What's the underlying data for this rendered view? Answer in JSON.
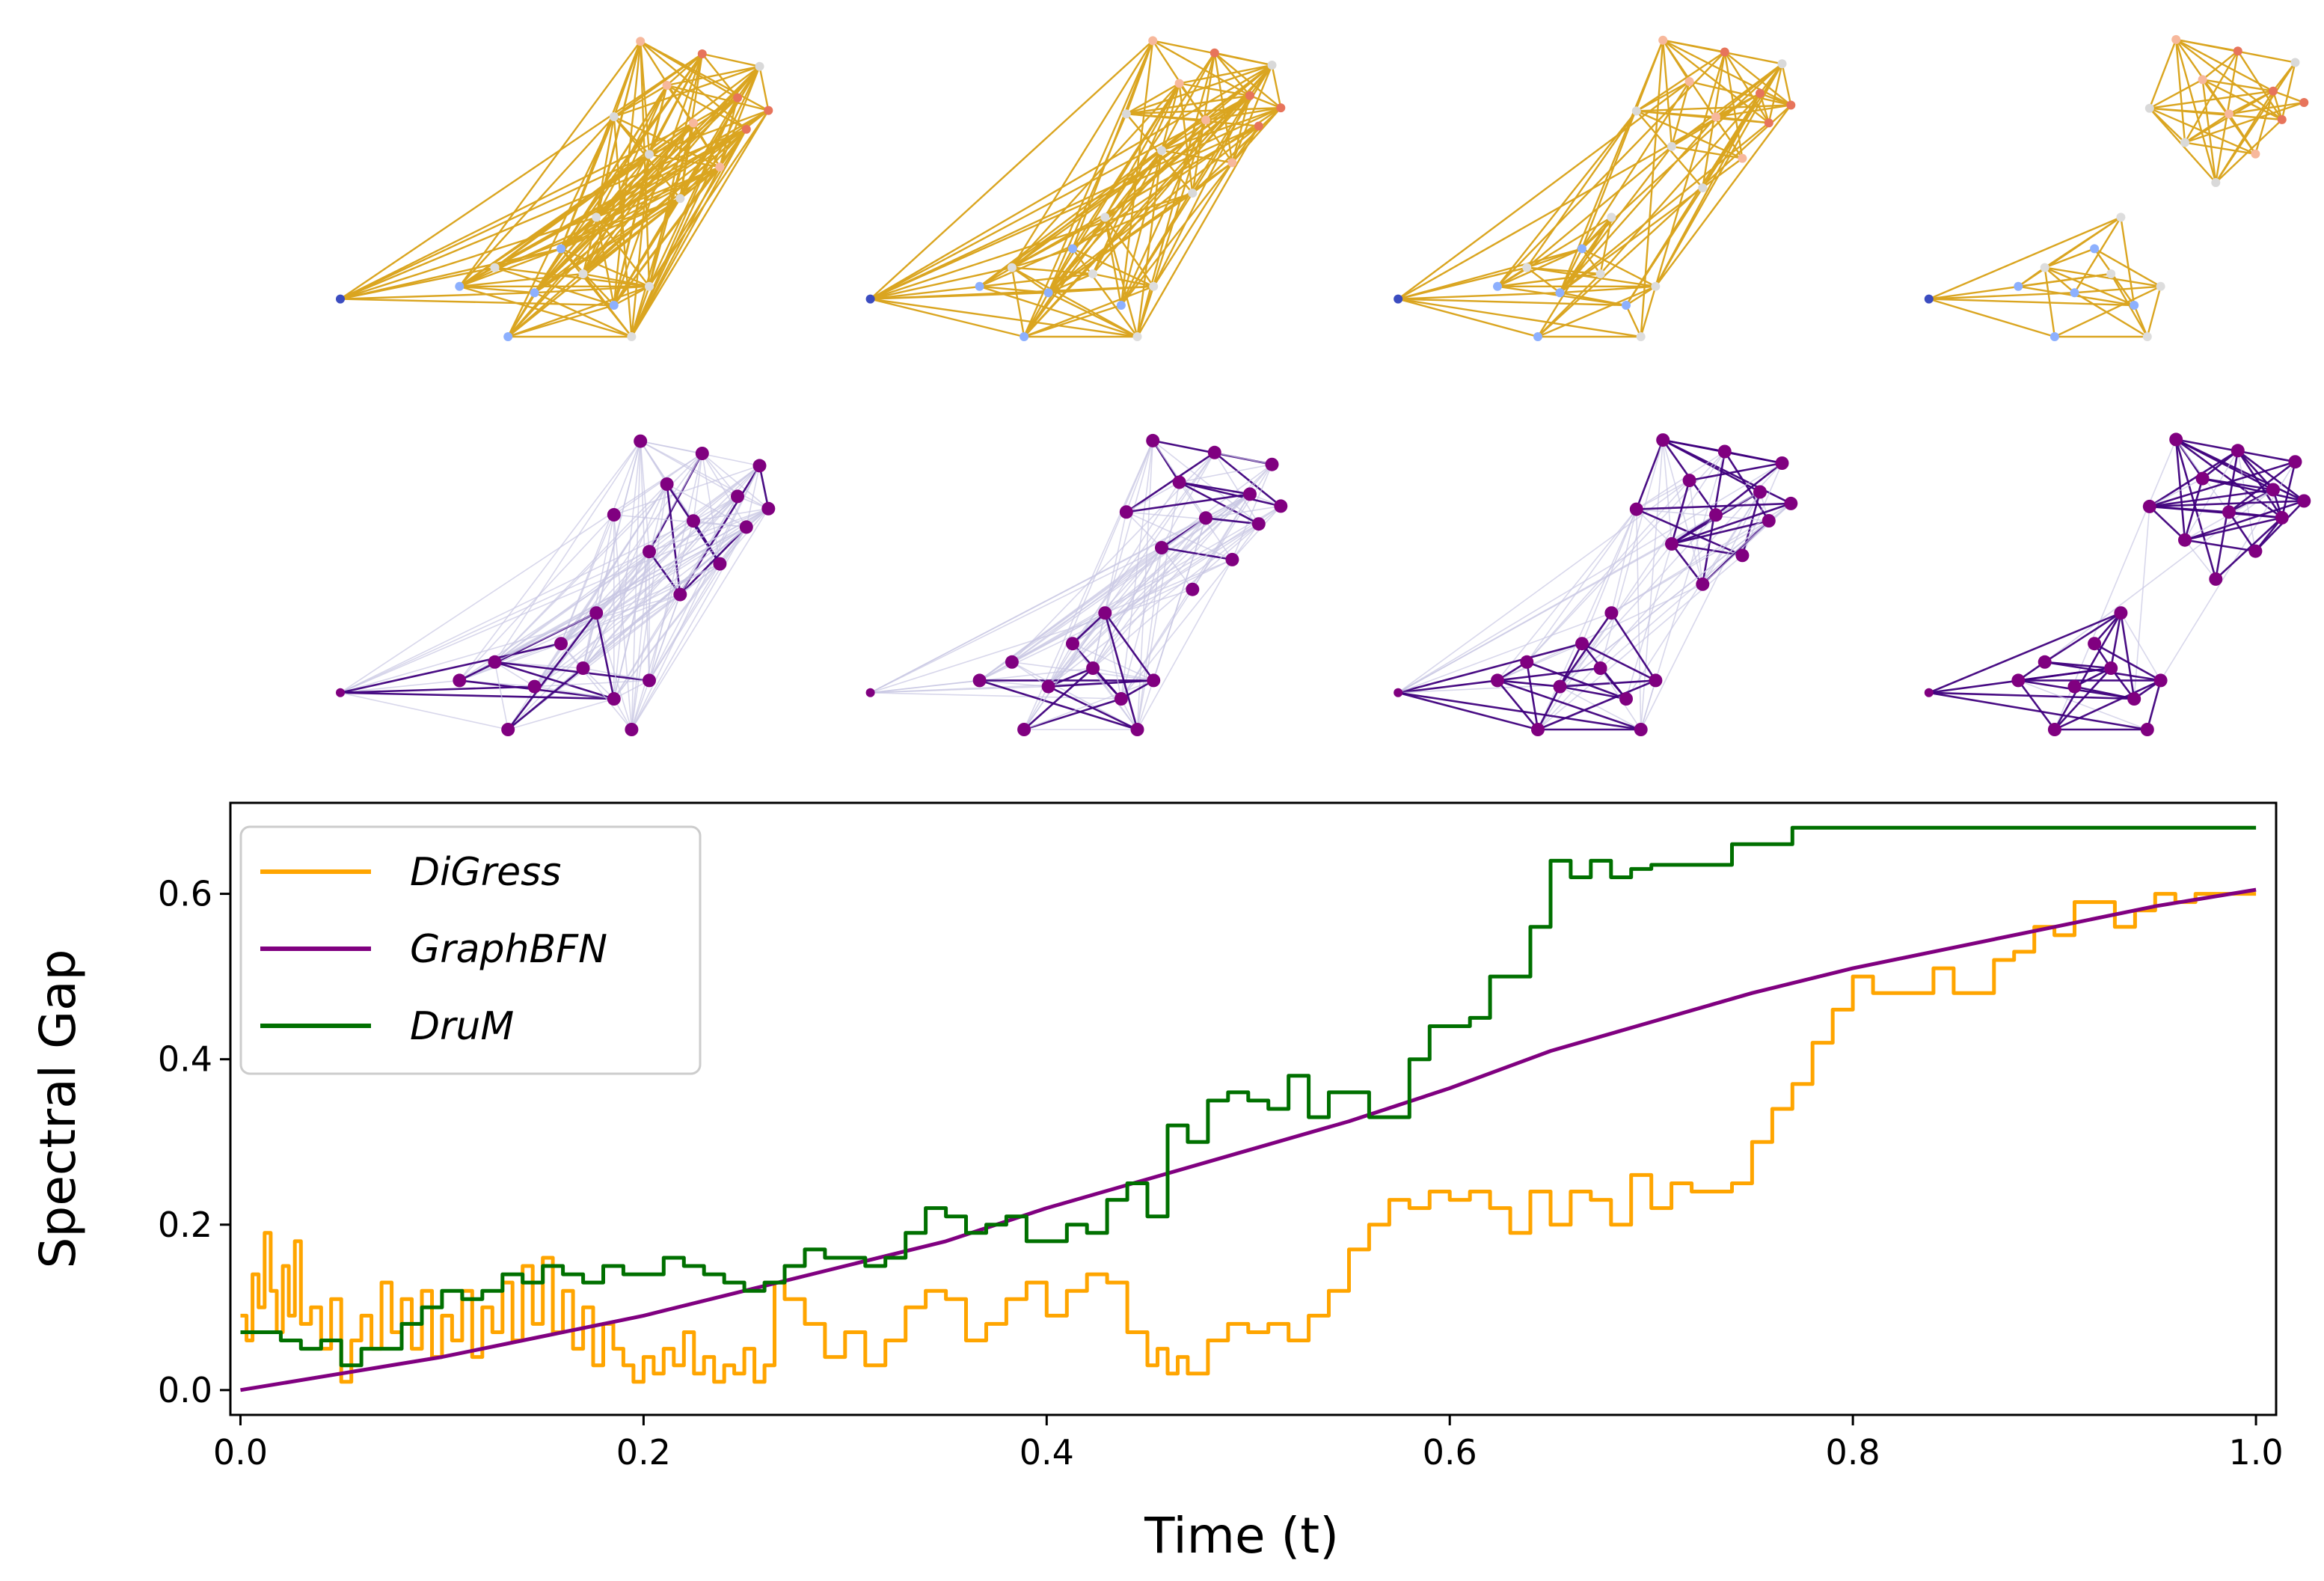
{
  "colors": {
    "digress": "#ffa500",
    "graphbfn": "#800080",
    "drum": "#007000",
    "digress_edges": "#daa520",
    "graphbfn_edges_light": "#c8c6e2",
    "graphbfn_edges_dark": "#3f007d",
    "graphbfn_nodes": "#800080",
    "digress_node_palette": [
      "#3b4cc0",
      "#8db0fe",
      "#dddddd",
      "#f7b89c",
      "#e7745b",
      "#d9d9d9"
    ]
  },
  "graph_panels": {
    "rows": [
      "DiGress",
      "GraphBFN"
    ],
    "snapshots": 4
  },
  "chart_data": {
    "type": "line",
    "title": "",
    "xlabel": "Time (t)",
    "ylabel": "Spectral Gap",
    "xlim": [
      -0.005,
      1.01
    ],
    "ylim": [
      -0.03,
      0.71
    ],
    "xticks": [
      0.0,
      0.2,
      0.4,
      0.6,
      0.8,
      1.0
    ],
    "xtick_labels": [
      "0.0",
      "0.2",
      "0.4",
      "0.6",
      "0.8",
      "1.0"
    ],
    "yticks": [
      0.0,
      0.2,
      0.4,
      0.6
    ],
    "ytick_labels": [
      "0.0",
      "0.2",
      "0.4",
      "0.6"
    ],
    "grid": false,
    "legend_position": "upper-left",
    "series": [
      {
        "name": "DiGress",
        "color": "#ffa500",
        "x": [
          0.0,
          0.003,
          0.006,
          0.009,
          0.012,
          0.015,
          0.018,
          0.021,
          0.024,
          0.027,
          0.03,
          0.035,
          0.04,
          0.045,
          0.05,
          0.055,
          0.06,
          0.065,
          0.07,
          0.075,
          0.08,
          0.085,
          0.09,
          0.095,
          0.1,
          0.105,
          0.11,
          0.115,
          0.12,
          0.125,
          0.13,
          0.135,
          0.14,
          0.145,
          0.15,
          0.155,
          0.16,
          0.165,
          0.17,
          0.175,
          0.18,
          0.185,
          0.19,
          0.195,
          0.2,
          0.205,
          0.21,
          0.215,
          0.22,
          0.225,
          0.23,
          0.235,
          0.24,
          0.245,
          0.25,
          0.255,
          0.26,
          0.265,
          0.27,
          0.28,
          0.29,
          0.3,
          0.31,
          0.32,
          0.33,
          0.34,
          0.35,
          0.36,
          0.37,
          0.38,
          0.39,
          0.4,
          0.41,
          0.42,
          0.43,
          0.44,
          0.45,
          0.455,
          0.46,
          0.465,
          0.47,
          0.48,
          0.49,
          0.5,
          0.51,
          0.52,
          0.53,
          0.54,
          0.55,
          0.56,
          0.57,
          0.58,
          0.59,
          0.6,
          0.61,
          0.62,
          0.63,
          0.64,
          0.65,
          0.66,
          0.67,
          0.68,
          0.69,
          0.7,
          0.71,
          0.72,
          0.73,
          0.74,
          0.75,
          0.76,
          0.77,
          0.78,
          0.79,
          0.8,
          0.81,
          0.82,
          0.83,
          0.84,
          0.85,
          0.86,
          0.87,
          0.88,
          0.89,
          0.9,
          0.91,
          0.92,
          0.93,
          0.94,
          0.95,
          0.96,
          0.97,
          0.98,
          0.99,
          1.0
        ],
        "y": [
          0.09,
          0.06,
          0.14,
          0.1,
          0.19,
          0.12,
          0.07,
          0.15,
          0.09,
          0.18,
          0.08,
          0.1,
          0.05,
          0.11,
          0.01,
          0.06,
          0.09,
          0.05,
          0.13,
          0.07,
          0.11,
          0.05,
          0.12,
          0.04,
          0.09,
          0.06,
          0.12,
          0.04,
          0.1,
          0.07,
          0.13,
          0.06,
          0.15,
          0.08,
          0.16,
          0.07,
          0.12,
          0.05,
          0.1,
          0.03,
          0.08,
          0.05,
          0.03,
          0.01,
          0.04,
          0.02,
          0.05,
          0.03,
          0.07,
          0.02,
          0.04,
          0.01,
          0.03,
          0.02,
          0.05,
          0.01,
          0.03,
          0.13,
          0.11,
          0.08,
          0.04,
          0.07,
          0.03,
          0.06,
          0.1,
          0.12,
          0.11,
          0.06,
          0.08,
          0.11,
          0.13,
          0.09,
          0.12,
          0.14,
          0.13,
          0.07,
          0.03,
          0.05,
          0.02,
          0.04,
          0.02,
          0.06,
          0.08,
          0.07,
          0.08,
          0.06,
          0.09,
          0.12,
          0.17,
          0.2,
          0.23,
          0.22,
          0.24,
          0.23,
          0.24,
          0.22,
          0.19,
          0.24,
          0.2,
          0.24,
          0.23,
          0.2,
          0.26,
          0.22,
          0.25,
          0.24,
          0.24,
          0.25,
          0.3,
          0.34,
          0.37,
          0.42,
          0.46,
          0.5,
          0.48,
          0.48,
          0.48,
          0.51,
          0.48,
          0.48,
          0.52,
          0.53,
          0.56,
          0.55,
          0.59,
          0.59,
          0.56,
          0.58,
          0.6,
          0.59,
          0.6,
          0.6,
          0.6,
          0.6
        ]
      },
      {
        "name": "GraphBFN",
        "color": "#800080",
        "x": [
          0.0,
          0.05,
          0.1,
          0.15,
          0.2,
          0.25,
          0.3,
          0.35,
          0.4,
          0.45,
          0.5,
          0.55,
          0.6,
          0.65,
          0.7,
          0.75,
          0.8,
          0.85,
          0.9,
          0.95,
          1.0
        ],
        "y": [
          0.0,
          0.02,
          0.04,
          0.065,
          0.09,
          0.12,
          0.15,
          0.18,
          0.22,
          0.255,
          0.29,
          0.325,
          0.365,
          0.41,
          0.445,
          0.48,
          0.51,
          0.535,
          0.56,
          0.585,
          0.605
        ]
      },
      {
        "name": "DruM",
        "color": "#007000",
        "x": [
          0.0,
          0.01,
          0.02,
          0.03,
          0.04,
          0.05,
          0.06,
          0.07,
          0.08,
          0.09,
          0.1,
          0.11,
          0.12,
          0.13,
          0.14,
          0.15,
          0.16,
          0.17,
          0.18,
          0.19,
          0.2,
          0.21,
          0.22,
          0.23,
          0.24,
          0.25,
          0.26,
          0.27,
          0.28,
          0.29,
          0.3,
          0.31,
          0.32,
          0.33,
          0.34,
          0.35,
          0.36,
          0.37,
          0.38,
          0.39,
          0.4,
          0.41,
          0.42,
          0.43,
          0.44,
          0.45,
          0.46,
          0.47,
          0.48,
          0.49,
          0.5,
          0.51,
          0.52,
          0.53,
          0.54,
          0.55,
          0.56,
          0.57,
          0.58,
          0.59,
          0.6,
          0.61,
          0.62,
          0.63,
          0.64,
          0.65,
          0.66,
          0.67,
          0.68,
          0.69,
          0.7,
          0.72,
          0.74,
          0.76,
          0.77,
          0.8,
          0.9,
          1.0
        ],
        "y": [
          0.07,
          0.07,
          0.06,
          0.05,
          0.06,
          0.03,
          0.05,
          0.05,
          0.08,
          0.1,
          0.12,
          0.11,
          0.12,
          0.14,
          0.13,
          0.15,
          0.14,
          0.13,
          0.15,
          0.14,
          0.14,
          0.16,
          0.15,
          0.14,
          0.13,
          0.12,
          0.13,
          0.15,
          0.17,
          0.16,
          0.16,
          0.15,
          0.16,
          0.19,
          0.22,
          0.21,
          0.19,
          0.2,
          0.21,
          0.18,
          0.18,
          0.2,
          0.19,
          0.23,
          0.25,
          0.21,
          0.32,
          0.3,
          0.35,
          0.36,
          0.35,
          0.34,
          0.38,
          0.33,
          0.36,
          0.36,
          0.33,
          0.33,
          0.4,
          0.44,
          0.44,
          0.45,
          0.5,
          0.5,
          0.56,
          0.64,
          0.62,
          0.64,
          0.62,
          0.63,
          0.635,
          0.635,
          0.66,
          0.66,
          0.68,
          0.68,
          0.68,
          0.68
        ]
      }
    ]
  }
}
